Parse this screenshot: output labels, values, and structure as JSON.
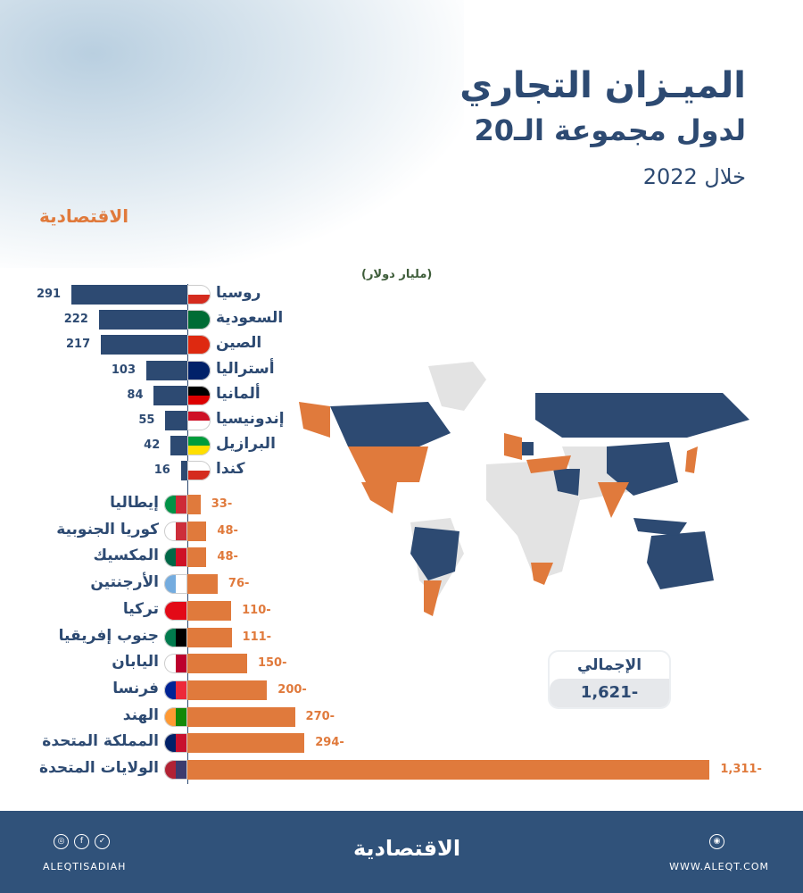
{
  "title": {
    "line1": "الميـزان التجاري",
    "line2": "لدول مجموعة الـ20",
    "line3": "خلال 2022"
  },
  "brand": {
    "logo": "الاقتصادية",
    "handle": "ALEQTISADIAH",
    "website": "WWW.ALEQT.COM"
  },
  "icons": [
    "instagram-icon",
    "facebook-icon",
    "twitter-icon",
    "web-icon"
  ],
  "colors": {
    "surplus": "#2d4a72",
    "deficit": "#e07a3c"
  },
  "total": {
    "label": "الإجمالي",
    "value": "1,621-"
  },
  "chart_data": {
    "type": "bar",
    "orientation": "horizontal",
    "unit": "(مليار دولار)",
    "categories": [
      "روسيا",
      "السعودية",
      "الصين",
      "أستراليا",
      "ألمانيا",
      "إندونيسيا",
      "البرازيل",
      "كندا",
      "إيطاليا",
      "كوريا الجنوبية",
      "المكسيك",
      "الأرجنتين",
      "تركيا",
      "جنوب إفريقيا",
      "اليابان",
      "فرنسا",
      "الهند",
      "المملكة المتحدة",
      "الولايات المتحدة"
    ],
    "values": [
      291,
      222,
      217,
      103,
      84,
      55,
      42,
      16,
      -33,
      -48,
      -48,
      -76,
      -110,
      -111,
      -150,
      -200,
      -270,
      -294,
      -1311
    ],
    "labels": [
      "291",
      "222",
      "217",
      "103",
      "84",
      "55",
      "42",
      "16",
      "33-",
      "48-",
      "48-",
      "76-",
      "110-",
      "111-",
      "150-",
      "200-",
      "270-",
      "294-",
      "1,311-"
    ],
    "flag_colors": [
      [
        "#fff",
        "#d52b1e"
      ],
      [
        "#006c35",
        "#006c35"
      ],
      [
        "#de2910",
        "#de2910"
      ],
      [
        "#012169",
        "#012169"
      ],
      [
        "#000",
        "#dd0000"
      ],
      [
        "#ce1126",
        "#fff"
      ],
      [
        "#009c3b",
        "#ffdf00"
      ],
      [
        "#fff",
        "#d52b1e"
      ],
      [
        "#009246",
        "#ce2b37"
      ],
      [
        "#fff",
        "#cd2e3a"
      ],
      [
        "#006847",
        "#ce1126"
      ],
      [
        "#74acdf",
        "#fff"
      ],
      [
        "#e30a17",
        "#e30a17"
      ],
      [
        "#007a4d",
        "#000"
      ],
      [
        "#fff",
        "#bc002d"
      ],
      [
        "#002395",
        "#ed2939"
      ],
      [
        "#ff9933",
        "#138808"
      ],
      [
        "#012169",
        "#c8102e"
      ],
      [
        "#b22234",
        "#3c3b6e"
      ]
    ]
  }
}
